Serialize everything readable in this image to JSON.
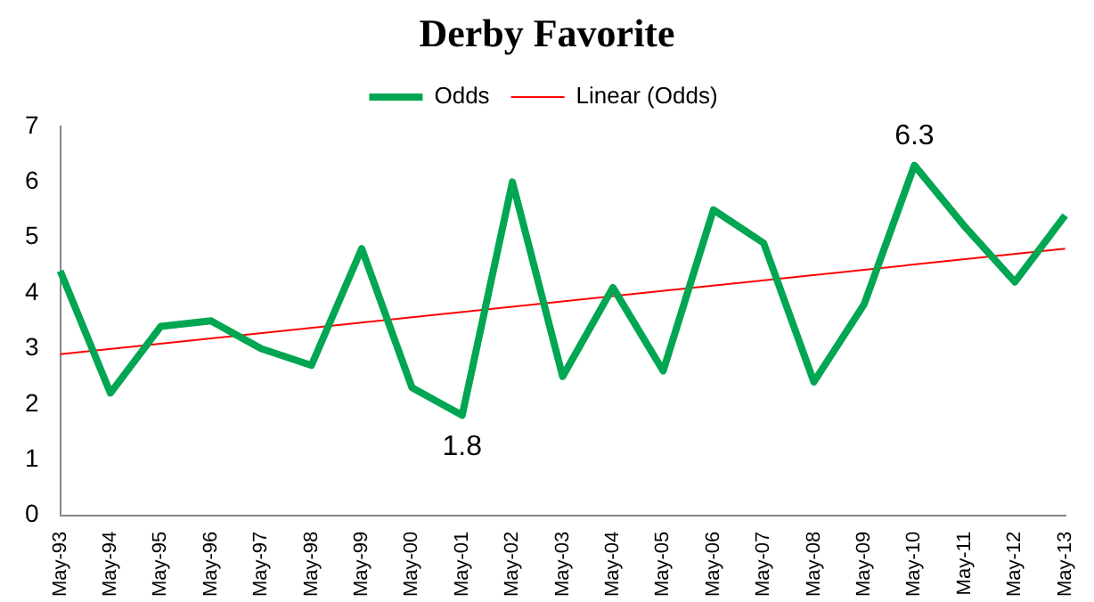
{
  "chart_data": {
    "type": "line",
    "title": "Derby Favorite",
    "categories": [
      "May-93",
      "May-94",
      "May-95",
      "May-96",
      "May-97",
      "May-98",
      "May-99",
      "May-00",
      "May-01",
      "May-02",
      "May-03",
      "May-04",
      "May-05",
      "May-06",
      "May-07",
      "May-08",
      "May-09",
      "May-10",
      "May-11",
      "May-12",
      "May-13"
    ],
    "series": [
      {
        "name": "Odds",
        "color": "#00a651",
        "values": [
          4.4,
          2.2,
          3.4,
          3.5,
          3.0,
          2.7,
          4.8,
          2.3,
          1.8,
          6.0,
          2.5,
          4.1,
          2.6,
          5.5,
          4.9,
          2.4,
          3.8,
          6.3,
          5.2,
          4.2,
          5.4
        ],
        "value_labels": [
          null,
          null,
          null,
          null,
          null,
          null,
          null,
          null,
          "1.8",
          null,
          null,
          null,
          null,
          null,
          null,
          null,
          null,
          "6.3",
          null,
          null,
          null
        ]
      },
      {
        "name": "Linear (Odds)",
        "color": "#ff0000",
        "type": "line",
        "x": [
          "May-93",
          "May-13"
        ],
        "values": [
          2.9,
          4.8
        ]
      }
    ],
    "ylim": [
      0,
      7
    ],
    "yticks": [
      0,
      1,
      2,
      3,
      4,
      5,
      6,
      7
    ],
    "grid": false,
    "legend": "top",
    "marker": "none",
    "line_style": "solid"
  }
}
